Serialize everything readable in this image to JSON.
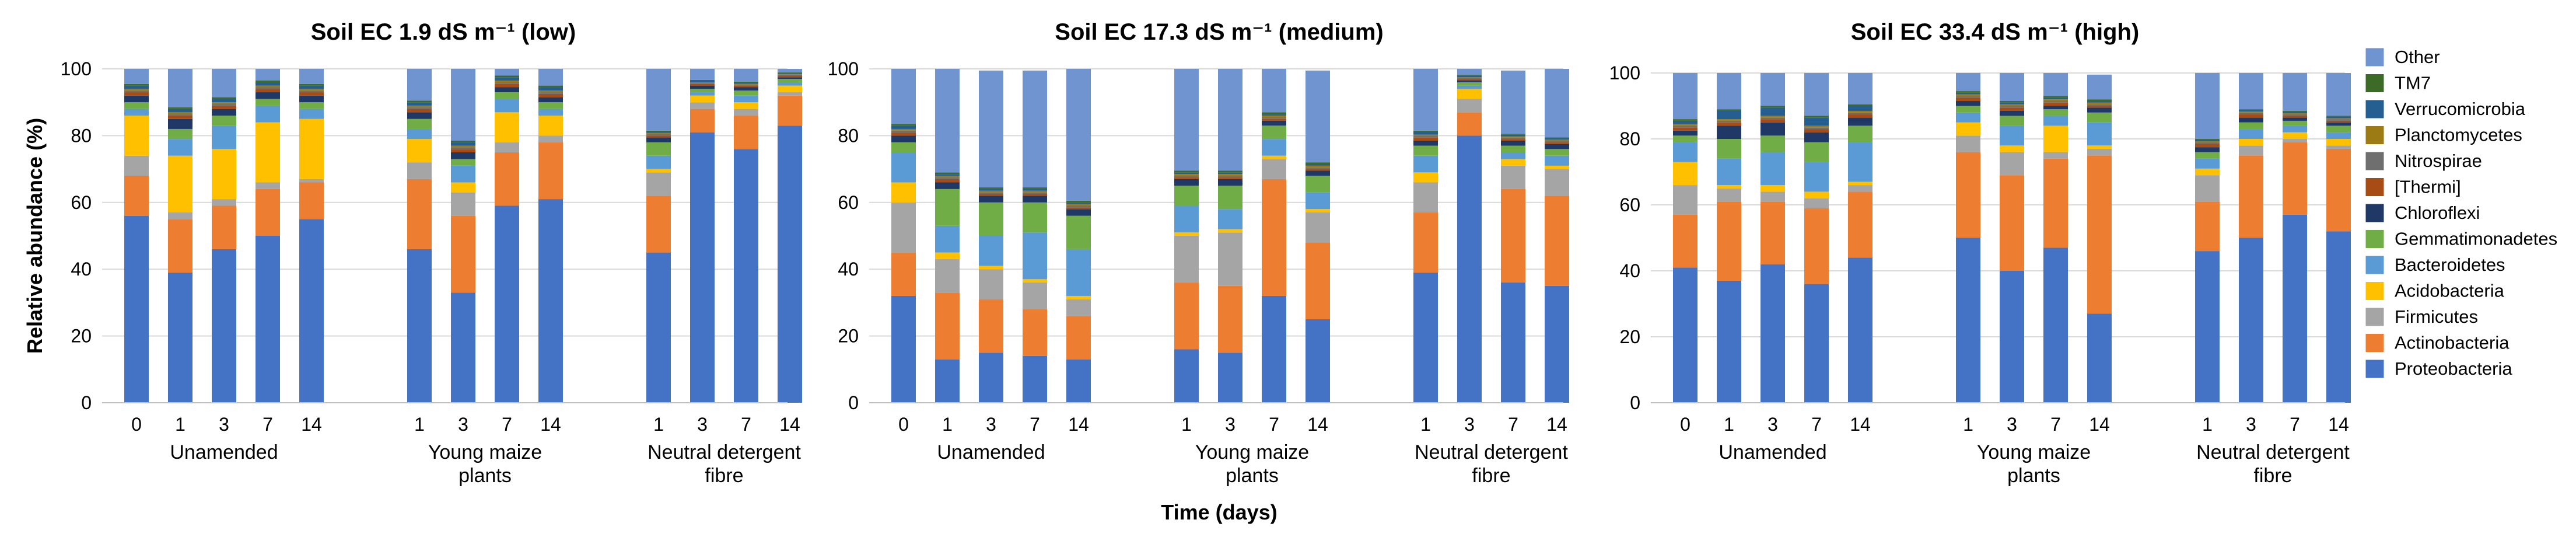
{
  "chart_data": {
    "type": "bar",
    "stacked": true,
    "ylabel": "Relative abundance (%)",
    "xlabel": "Time (days)",
    "ylim": [
      0,
      100
    ],
    "yticks": [
      0,
      20,
      40,
      60,
      80,
      100
    ],
    "legend": {
      "position": "right",
      "entries": [
        {
          "name": "Other",
          "color": "#7094cf"
        },
        {
          "name": "TM7",
          "color": "#3b6b27"
        },
        {
          "name": "Verrucomicrobia",
          "color": "#255e91"
        },
        {
          "name": "Planctomycetes",
          "color": "#9c7a14"
        },
        {
          "name": "Nitrospirae",
          "color": "#6f6f6f"
        },
        {
          "name": "[Thermi]",
          "color": "#a64c14"
        },
        {
          "name": "Chloroflexi",
          "color": "#1f3866"
        },
        {
          "name": "Gemmatimonadetes",
          "color": "#70ad47"
        },
        {
          "name": "Bacteroidetes",
          "color": "#5b9bd5"
        },
        {
          "name": "Acidobacteria",
          "color": "#ffc000"
        },
        {
          "name": "Firmicutes",
          "color": "#a5a5a5"
        },
        {
          "name": "Actinobacteria",
          "color": "#ed7d31"
        },
        {
          "name": "Proteobacteria",
          "color": "#4472c4"
        }
      ]
    },
    "stack_order": [
      "Proteobacteria",
      "Actinobacteria",
      "Firmicutes",
      "Acidobacteria",
      "Bacteroidetes",
      "Gemmatimonadetes",
      "Chloroflexi",
      "[Thermi]",
      "Nitrospirae",
      "Planctomycetes",
      "Verrucomicrobia",
      "TM7",
      "Other"
    ],
    "panels": [
      {
        "title": "Soil EC 1.9 dS m⁻¹ (low)",
        "groups": [
          {
            "label_lines": [
              "Unamended"
            ],
            "bars": [
              {
                "day": "0",
                "values": [
                  56,
                  12,
                  6,
                  12,
                  2,
                  2,
                  2,
                  1,
                  0.5,
                  0.5,
                  1,
                  0.5,
                  4.5
                ]
              },
              {
                "day": "1",
                "values": [
                  39,
                  16,
                  2,
                  17,
                  5,
                  3,
                  3,
                  1,
                  0.5,
                  0.5,
                  1,
                  0.5,
                  11.5
                ]
              },
              {
                "day": "3",
                "values": [
                  46,
                  13,
                  2,
                  15,
                  7,
                  3,
                  2,
                  1,
                  0.5,
                  0.5,
                  1,
                  0.5,
                  8.5
                ]
              },
              {
                "day": "7",
                "values": [
                  50,
                  14,
                  2,
                  18,
                  5,
                  2,
                  2,
                  1,
                  0.5,
                  0.5,
                  1,
                  0.5,
                  3.5
                ]
              },
              {
                "day": "14",
                "values": [
                  55,
                  11,
                  1,
                  18,
                  3,
                  2,
                  2,
                  1,
                  0.5,
                  0.5,
                  1,
                  0.5,
                  4.5
                ]
              }
            ]
          },
          {
            "label_lines": [
              "Young maize",
              "plants"
            ],
            "bars": [
              {
                "day": "1",
                "values": [
                  46,
                  21,
                  5,
                  7,
                  3,
                  3,
                  2,
                  1,
                  0.5,
                  0.5,
                  1,
                  0.5,
                  9.5
                ]
              },
              {
                "day": "3",
                "values": [
                  33,
                  23,
                  7,
                  3,
                  5,
                  2,
                  2,
                  1,
                  0.5,
                  0.5,
                  1,
                  0.5,
                  21.5
                ]
              },
              {
                "day": "7",
                "values": [
                  59,
                  16,
                  3,
                  9,
                  4,
                  2,
                  1.5,
                  1,
                  0.5,
                  0.5,
                  1,
                  0.5,
                  2
                ]
              },
              {
                "day": "14",
                "values": [
                  61,
                  17,
                  2,
                  6,
                  2,
                  2,
                  1.5,
                  1,
                  0.5,
                  0.5,
                  1,
                  0.5,
                  5
                ]
              }
            ]
          },
          {
            "label_lines": [
              "Neutral detergent",
              "fibre"
            ],
            "bars": [
              {
                "day": "1",
                "values": [
                  45,
                  17,
                  7,
                  1,
                  4,
                  4,
                  1.5,
                  0.5,
                  0.5,
                  0.3,
                  0.5,
                  0.2,
                  18.5
                ]
              },
              {
                "day": "3",
                "values": [
                  81,
                  7,
                  2,
                  2,
                  1,
                  1,
                  1,
                  0.5,
                  0.3,
                  0.2,
                  0.5,
                  0.2,
                  3.3
                ]
              },
              {
                "day": "7",
                "values": [
                  76,
                  10,
                  2,
                  2,
                  2,
                  1.5,
                  1,
                  0.5,
                  0.3,
                  0.2,
                  0.5,
                  0.2,
                  3.8
                ]
              },
              {
                "day": "14",
                "values": [
                  83,
                  9,
                  1,
                  2,
                  1,
                  1,
                  0.5,
                  0.5,
                  0.3,
                  0.2,
                  0.3,
                  0.2,
                  1
                ]
              }
            ]
          }
        ]
      },
      {
        "title": "Soil EC 17.3 dS m⁻¹ (medium)",
        "groups": [
          {
            "label_lines": [
              "Unamended"
            ],
            "bars": [
              {
                "day": "0",
                "values": [
                  32,
                  13,
                  15,
                  6,
                  9,
                  3,
                  2,
                  1,
                  0.5,
                  0.5,
                  1,
                  0.5,
                  16.5
                ]
              },
              {
                "day": "1",
                "values": [
                  13,
                  20,
                  10,
                  2,
                  8,
                  11,
                  2,
                  1,
                  0.5,
                  0.5,
                  0.5,
                  0.5,
                  31
                ]
              },
              {
                "day": "3",
                "values": [
                  15,
                  16,
                  9,
                  1,
                  9,
                  10,
                  2,
                  0.5,
                  0.5,
                  0.5,
                  0.5,
                  0.5,
                  35
                ]
              },
              {
                "day": "7",
                "values": [
                  14,
                  14,
                  8,
                  1,
                  14,
                  9,
                  2,
                  0.5,
                  0.5,
                  0.5,
                  0.5,
                  0.5,
                  35
                ]
              },
              {
                "day": "14",
                "values": [
                  13,
                  13,
                  5,
                  1,
                  14,
                  10,
                  2,
                  0.5,
                  0.5,
                  0.5,
                  0.5,
                  0.5,
                  39.5
                ]
              }
            ]
          },
          {
            "label_lines": [
              "Young maize",
              "plants"
            ],
            "bars": [
              {
                "day": "1",
                "values": [
                  16,
                  20,
                  14,
                  1,
                  8,
                  6,
                  2,
                  0.5,
                  0.5,
                  0.5,
                  0.5,
                  0.5,
                  30.5
                ]
              },
              {
                "day": "3",
                "values": [
                  15,
                  20,
                  16,
                  1,
                  6,
                  7,
                  2,
                  0.5,
                  0.5,
                  0.5,
                  0.5,
                  0.5,
                  30.5
                ]
              },
              {
                "day": "7",
                "values": [
                  32,
                  35,
                  6,
                  1,
                  5,
                  4,
                  1.5,
                  0.5,
                  0.5,
                  0.5,
                  0.5,
                  0.5,
                  13
                ]
              },
              {
                "day": "14",
                "values": [
                  25,
                  23,
                  9,
                  1,
                  5,
                  5,
                  1.5,
                  0.5,
                  0.5,
                  0.5,
                  0.5,
                  0.5,
                  27.5
                ]
              }
            ]
          },
          {
            "label_lines": [
              "Neutral detergent",
              "fibre"
            ],
            "bars": [
              {
                "day": "1",
                "values": [
                  39,
                  18,
                  9,
                  3,
                  5,
                  3,
                  1.5,
                  1,
                  0.5,
                  0.3,
                  1,
                  0.2,
                  18.5
                ]
              },
              {
                "day": "3",
                "values": [
                  80,
                  7,
                  4,
                  3,
                  1,
                  1,
                  0.5,
                  0.5,
                  0.3,
                  0.2,
                  0.5,
                  0.2,
                  1.8
                ]
              },
              {
                "day": "7",
                "values": [
                  36,
                  28,
                  7,
                  2,
                  2,
                  2,
                  1.5,
                  0.5,
                  0.5,
                  0.3,
                  0.5,
                  0.2,
                  19
                ]
              },
              {
                "day": "14",
                "values": [
                  35,
                  27,
                  8,
                  1,
                  3,
                  2,
                  1.5,
                  0.5,
                  0.5,
                  0.3,
                  0.5,
                  0.2,
                  20.5
                ]
              }
            ]
          }
        ]
      },
      {
        "title": "Soil EC 33.4 dS m⁻¹ (high)",
        "groups": [
          {
            "label_lines": [
              "Unamended"
            ],
            "bars": [
              {
                "day": "0",
                "values": [
                  41,
                  16,
                  9,
                  7,
                  6,
                  2,
                  1.5,
                  1,
                  0.5,
                  0.5,
                  1,
                  0.5,
                  14
                ]
              },
              {
                "day": "1",
                "values": [
                  37,
                  24,
                  4,
                  1,
                  8,
                  6,
                  4,
                  1,
                  0.5,
                  0.5,
                  2.5,
                  0.5,
                  11
                ]
              },
              {
                "day": "3",
                "values": [
                  42,
                  19,
                  3,
                  2,
                  10,
                  5,
                  4,
                  1,
                  0.5,
                  0.5,
                  2.5,
                  0.5,
                  10
                ]
              },
              {
                "day": "7",
                "values": [
                  36,
                  23,
                  3,
                  2,
                  9,
                  6,
                  3,
                  1,
                  0.5,
                  0.5,
                  2.5,
                  0.5,
                  13
                ]
              },
              {
                "day": "14",
                "values": [
                  44,
                  20,
                  2,
                  1,
                  12,
                  5,
                  2.5,
                  1,
                  0.5,
                  0.5,
                  1.5,
                  0.5,
                  9.5
                ]
              }
            ]
          },
          {
            "label_lines": [
              "Young maize",
              "plants"
            ],
            "bars": [
              {
                "day": "1",
                "values": [
                  50,
                  26,
                  5,
                  4,
                  3,
                  2,
                  1.5,
                  1,
                  0.5,
                  0.5,
                  0.5,
                  0.5,
                  5.5
                ]
              },
              {
                "day": "3",
                "values": [
                  40,
                  29,
                  7,
                  2,
                  6,
                  3,
                  1.5,
                  1,
                  0.5,
                  0.5,
                  0.5,
                  0.5,
                  8.5
                ]
              },
              {
                "day": "7",
                "values": [
                  47,
                  27,
                  2,
                  8,
                  3,
                  2,
                  1,
                  1,
                  0.5,
                  0.5,
                  0.5,
                  0.5,
                  7
                ]
              },
              {
                "day": "14",
                "values": [
                  27,
                  48,
                  2,
                  1,
                  7,
                  3,
                  1.5,
                  0.5,
                  0.5,
                  0.5,
                  0.5,
                  0.5,
                  7.5
                ]
              }
            ]
          },
          {
            "label_lines": [
              "Neutral detergent",
              "fibre"
            ],
            "bars": [
              {
                "day": "1",
                "values": [
                  46,
                  15,
                  8,
                  2,
                  3,
                  2,
                  1.5,
                  1,
                  0.5,
                  0.3,
                  0.5,
                  0.2,
                  20
                ]
              },
              {
                "day": "3",
                "values": [
                  50,
                  25,
                  3,
                  2,
                  3,
                  2,
                  1.5,
                  1,
                  0.5,
                  0.3,
                  0.5,
                  0.2,
                  11
                ]
              },
              {
                "day": "7",
                "values": [
                  57,
                  22,
                  1,
                  2,
                  2,
                  1.5,
                  1,
                  0.5,
                  0.5,
                  0.3,
                  0.5,
                  0.2,
                  11.5
                ]
              },
              {
                "day": "14",
                "values": [
                  52,
                  25,
                  1,
                  2,
                  2,
                  2,
                  1,
                  0.5,
                  0.5,
                  0.3,
                  0.5,
                  0.2,
                  13
                ]
              }
            ]
          }
        ]
      }
    ]
  }
}
